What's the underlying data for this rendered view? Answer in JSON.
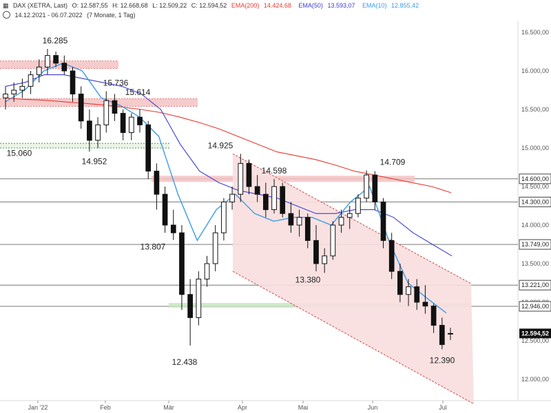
{
  "header": {
    "symbol": "DAX (XETRA, Last)",
    "o": "O: 12.587,55",
    "h": "H: 12.668,68",
    "l": "L: 12.509,22",
    "c": "C: 12.594,52",
    "ema200": "EMA(200)",
    "ema200_val": "14.424,68",
    "ema50": "EMA(50)",
    "ema50_val": "13.593,07",
    "ema10": "EMA(10)",
    "ema10_val": "12.855,42",
    "range": "14.12.2021 - 06.07.2022",
    "period": "(7 Monate, 1 Tag)"
  },
  "colors": {
    "ema200": "#e8382e",
    "ema50": "#3b3bd4",
    "ema10": "#3a9be6",
    "candle": "#111111",
    "resistance_fill": "#f5c2c2",
    "support_fill": "#c8e6c0",
    "channel_fill": "#f8dede"
  },
  "chart_data": {
    "type": "candlestick",
    "ylim": [
      11900,
      16650
    ],
    "y_ticks": [
      "16.500,00",
      "16.000,00",
      "15.500,00",
      "15.000,00",
      "14.500,00",
      "14.000,00",
      "13.500,00",
      "13.000,00",
      "12.500,00",
      "12.000,00"
    ],
    "y_tick_values": [
      16500,
      16000,
      15500,
      15000,
      14500,
      14000,
      13500,
      13000,
      12500,
      12000
    ],
    "x_labels": [
      "Jan '22",
      "Feb",
      "Mär",
      "Apr",
      "Mai",
      "Jun",
      "Jul"
    ],
    "horizontal_levels": [
      {
        "value": 14600,
        "label": "14.600,00"
      },
      {
        "value": 14300,
        "label": "14.300,00"
      },
      {
        "value": 13749,
        "label": "13.749,00"
      },
      {
        "value": 13221,
        "label": "13.221,00"
      },
      {
        "value": 12946,
        "label": "12.946,00"
      }
    ],
    "last_price": {
      "value": 12594.52,
      "label": "12.594,52"
    },
    "annotations": [
      {
        "text": "16.285",
        "value": 16285
      },
      {
        "text": "15.736",
        "value": 15736
      },
      {
        "text": "15.614",
        "value": 15614
      },
      {
        "text": "15.060",
        "value": 15060
      },
      {
        "text": "14.952",
        "value": 14952
      },
      {
        "text": "14.925",
        "value": 14925
      },
      {
        "text": "14.598",
        "value": 14598
      },
      {
        "text": "14.709",
        "value": 14709
      },
      {
        "text": "13.807",
        "value": 13807
      },
      {
        "text": "13.380",
        "value": 13380
      },
      {
        "text": "12.438",
        "value": 12438
      },
      {
        "text": "12.390",
        "value": 12390
      }
    ],
    "series": [
      {
        "name": "EMA(200)",
        "values": [
          15650,
          15630,
          15620,
          15600,
          15580,
          15560,
          15530,
          15500,
          15460,
          15400,
          15330,
          15250,
          15150,
          15050,
          14950,
          14900,
          14850,
          14780,
          14700,
          14650,
          14600,
          14550,
          14500,
          14420
        ]
      },
      {
        "name": "EMA(50)",
        "values": [
          15800,
          15850,
          15950,
          15950,
          15900,
          15850,
          15800,
          15700,
          15500,
          15050,
          14700,
          14550,
          14450,
          14400,
          14350,
          14250,
          14150,
          14150,
          14200,
          14200,
          14100,
          13900,
          13750,
          13600
        ]
      },
      {
        "name": "EMA(10)",
        "values": [
          15600,
          15750,
          16000,
          16100,
          16000,
          15650,
          15550,
          15400,
          15150,
          14400,
          13800,
          14200,
          14400,
          14150,
          14050,
          14100,
          14100,
          14000,
          14300,
          14500,
          13800,
          13250,
          13050,
          12860
        ]
      }
    ],
    "candles": [
      [
        15650,
        15800,
        15500,
        15700
      ],
      [
        15700,
        15850,
        15600,
        15750
      ],
      [
        15750,
        15900,
        15650,
        15800
      ],
      [
        15800,
        16000,
        15700,
        15950
      ],
      [
        15950,
        16150,
        15850,
        16050
      ],
      [
        16050,
        16285,
        15950,
        16200
      ],
      [
        16200,
        16250,
        16050,
        16100
      ],
      [
        16100,
        16200,
        15950,
        16000
      ],
      [
        16000,
        16050,
        15600,
        15700
      ],
      [
        15700,
        15800,
        15250,
        15350
      ],
      [
        15350,
        15500,
        14952,
        15100
      ],
      [
        15100,
        15400,
        15000,
        15300
      ],
      [
        15300,
        15736,
        15200,
        15614
      ],
      [
        15614,
        15700,
        15350,
        15450
      ],
      [
        15450,
        15500,
        15100,
        15200
      ],
      [
        15200,
        15450,
        15100,
        15400
      ],
      [
        15400,
        15500,
        15200,
        15300
      ],
      [
        15300,
        15350,
        14600,
        14700
      ],
      [
        14700,
        14800,
        14200,
        14400
      ],
      [
        14400,
        14500,
        13900,
        14000
      ],
      [
        14000,
        14200,
        13807,
        13900
      ],
      [
        13900,
        14000,
        12900,
        13100
      ],
      [
        13100,
        13300,
        12438,
        12800
      ],
      [
        12800,
        13400,
        12700,
        13300
      ],
      [
        13300,
        13600,
        13200,
        13500
      ],
      [
        13500,
        14000,
        13400,
        13900
      ],
      [
        13900,
        14350,
        13800,
        14300
      ],
      [
        14300,
        14500,
        14200,
        14400
      ],
      [
        14400,
        14925,
        14300,
        14800
      ],
      [
        14800,
        14850,
        14400,
        14500
      ],
      [
        14500,
        14650,
        14300,
        14400
      ],
      [
        14400,
        14550,
        14100,
        14200
      ],
      [
        14200,
        14598,
        14150,
        14500
      ],
      [
        14500,
        14550,
        14100,
        14150
      ],
      [
        14150,
        14300,
        13900,
        14000
      ],
      [
        14000,
        14200,
        13850,
        14100
      ],
      [
        14100,
        14150,
        13700,
        13800
      ],
      [
        13800,
        14000,
        13400,
        13500
      ],
      [
        13500,
        13700,
        13380,
        13600
      ],
      [
        13600,
        14050,
        13550,
        14000
      ],
      [
        14000,
        14200,
        13900,
        14100
      ],
      [
        14100,
        14250,
        13950,
        14150
      ],
      [
        14150,
        14400,
        14100,
        14350
      ],
      [
        14350,
        14709,
        14300,
        14650
      ],
      [
        14650,
        14700,
        14200,
        14300
      ],
      [
        14300,
        14350,
        13700,
        13800
      ],
      [
        13800,
        13900,
        13300,
        13400
      ],
      [
        13400,
        13500,
        13000,
        13100
      ],
      [
        13100,
        13300,
        12950,
        13200
      ],
      [
        13200,
        13300,
        12900,
        13000
      ],
      [
        13000,
        13221,
        12850,
        12950
      ],
      [
        12950,
        12980,
        12600,
        12700
      ],
      [
        12700,
        12800,
        12390,
        12450
      ],
      [
        12587.55,
        12668.68,
        12509.22,
        12594.52
      ]
    ]
  }
}
